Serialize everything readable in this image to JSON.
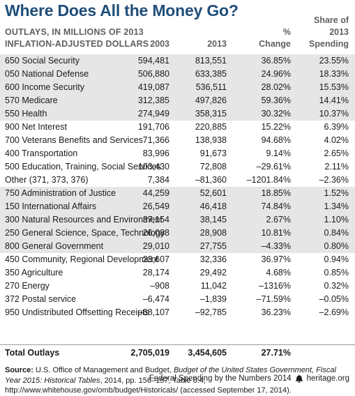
{
  "title": "Where Does All the Money Go?",
  "header": {
    "left_line1": "OUTLAYS, IN MILLIONS OF 2013",
    "left_line2": "INFLATION-ADJUSTED DOLLARS",
    "col_2003": "2003",
    "col_2013": "2013",
    "col_pct_line1": "%",
    "col_pct_line2": "Change",
    "col_share_line1": "Share of",
    "col_share_line2": "2013",
    "col_share_line3": "Spending"
  },
  "rows": [
    {
      "label": "650 Social Security",
      "v2003": "594,481",
      "v2013": "813,551",
      "pct": "36.85%",
      "share": "23.55%"
    },
    {
      "label": "050 National Defense",
      "v2003": "506,880",
      "v2013": "633,385",
      "pct": "24.96%",
      "share": "18.33%"
    },
    {
      "label": "600 Income Security",
      "v2003": "419,087",
      "v2013": "536,511",
      "pct": "28.02%",
      "share": "15.53%"
    },
    {
      "label": "570 Medicare",
      "v2003": "312,385",
      "v2013": "497,826",
      "pct": "59.36%",
      "share": "14.41%"
    },
    {
      "label": "550 Health",
      "v2003": "274,949",
      "v2013": "358,315",
      "pct": "30.32%",
      "share": "10.37%"
    },
    {
      "label": "900 Net Interest",
      "v2003": "191,706",
      "v2013": "220,885",
      "pct": "15.22%",
      "share": "6.39%"
    },
    {
      "label": "700 Veterans Benefits and Services",
      "v2003": "71,366",
      "v2013": "138,938",
      "pct": "94.68%",
      "share": "4.02%"
    },
    {
      "label": "400 Transportation",
      "v2003": "83,996",
      "v2013": "91,673",
      "pct": "9.14%",
      "share": "2.65%"
    },
    {
      "label": "500 Education, Training, Social Services",
      "v2003": "103,430",
      "v2013": "72,808",
      "pct": "–29.61%",
      "share": "2.11%"
    },
    {
      "label": "Other (371, 373, 376)",
      "v2003": "7,384",
      "v2013": "–81,360",
      "pct": "–1201.84%",
      "share": "–2.36%"
    },
    {
      "label": "750 Administration of Justice",
      "v2003": "44,259",
      "v2013": "52,601",
      "pct": "18.85%",
      "share": "1.52%"
    },
    {
      "label": "150 International Affairs",
      "v2003": "26,549",
      "v2013": "46,418",
      "pct": "74.84%",
      "share": "1.34%"
    },
    {
      "label": "300 Natural Resources and Environment",
      "v2003": "37,154",
      "v2013": "38,145",
      "pct": "2.67%",
      "share": "1.10%"
    },
    {
      "label": "250 General Science, Space, Technology",
      "v2003": "26,088",
      "v2013": "28,908",
      "pct": "10.81%",
      "share": "0.84%"
    },
    {
      "label": "800 General Government",
      "v2003": "29,010",
      "v2013": "27,755",
      "pct": "–4.33%",
      "share": "0.80%"
    },
    {
      "label": "450 Community, Regional Development",
      "v2003": "23,607",
      "v2013": "32,336",
      "pct": "36.97%",
      "share": "0.94%"
    },
    {
      "label": "350 Agriculture",
      "v2003": "28,174",
      "v2013": "29,492",
      "pct": "4.68%",
      "share": "0.85%"
    },
    {
      "label": "270 Energy",
      "v2003": "–908",
      "v2013": "11,042",
      "pct": "–1316%",
      "share": "0.32%"
    },
    {
      "label": "372 Postal service",
      "v2003": "–6,474",
      "v2013": "–1,839",
      "pct": "–71.59%",
      "share": "–0.05%"
    },
    {
      "label": "950 Undistributed Offsetting Receipts",
      "v2003": "–68,107",
      "v2013": "–92,785",
      "pct": "36.23%",
      "share": "–2.69%"
    }
  ],
  "total": {
    "label": "Total Outlays",
    "v2003": "2,705,019",
    "v2013": "3,454,605",
    "pct": "27.71%",
    "share": ""
  },
  "source": {
    "label": "Source:",
    "text1": " U.S. Office of Management and Budget, ",
    "italic": "Budget of the United States Government, Fiscal Year 2015: Historical Tables",
    "text2": ", 2014, pp. 156–157, Table 8.4, http://www.whitehouse.gov/omb/budget/Historicals/ (accessed September 17, 2014)."
  },
  "footer": {
    "publication": "Federal Spending by the Numbers 2014",
    "site": "heritage.org",
    "icon": "liberty-bell-icon"
  },
  "colors": {
    "title": "#1f4e79",
    "shade": "#e6e6e6",
    "header": "#5f5f5f"
  }
}
